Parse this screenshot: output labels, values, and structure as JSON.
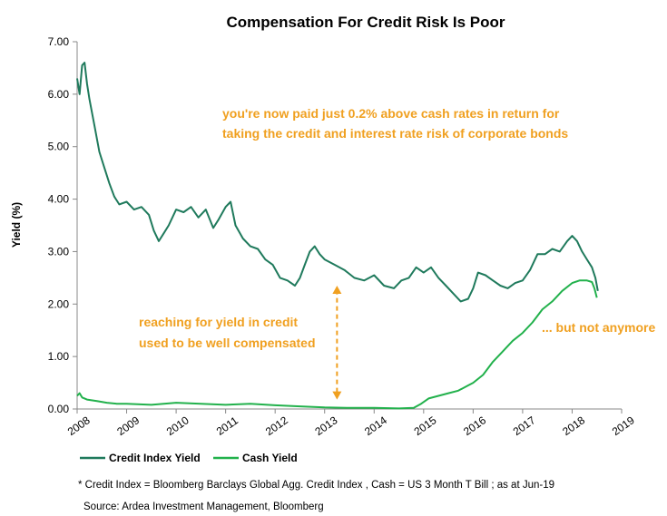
{
  "chart_data": {
    "type": "line",
    "title": "Compensation For Credit Risk Is Poor",
    "xlabel": "",
    "ylabel": "Yield (%)",
    "xlim": [
      2008,
      2019
    ],
    "ylim": [
      0,
      7
    ],
    "x_ticks": [
      "2008",
      "2009",
      "2010",
      "2011",
      "2012",
      "2013",
      "2014",
      "2015",
      "2016",
      "2017",
      "2018",
      "2019"
    ],
    "y_ticks": [
      "0.00",
      "1.00",
      "2.00",
      "3.00",
      "4.00",
      "5.00",
      "6.00",
      "7.00"
    ],
    "grid": false,
    "legend_position": "bottom-left",
    "series": [
      {
        "name": "Credit Index Yield",
        "color": "#1f7a5c",
        "x": [
          2008.0,
          2008.05,
          2008.1,
          2008.15,
          2008.2,
          2008.25,
          2008.35,
          2008.45,
          2008.55,
          2008.65,
          2008.75,
          2008.85,
          2009.0,
          2009.15,
          2009.3,
          2009.45,
          2009.55,
          2009.65,
          2009.75,
          2009.85,
          2010.0,
          2010.15,
          2010.3,
          2010.45,
          2010.6,
          2010.75,
          2010.85,
          2011.0,
          2011.1,
          2011.2,
          2011.35,
          2011.5,
          2011.65,
          2011.8,
          2011.95,
          2012.1,
          2012.25,
          2012.4,
          2012.5,
          2012.6,
          2012.7,
          2012.8,
          2012.9,
          2013.0,
          2013.2,
          2013.4,
          2013.6,
          2013.8,
          2014.0,
          2014.2,
          2014.4,
          2014.55,
          2014.7,
          2014.85,
          2015.0,
          2015.15,
          2015.3,
          2015.45,
          2015.6,
          2015.75,
          2015.9,
          2016.0,
          2016.1,
          2016.25,
          2016.4,
          2016.55,
          2016.7,
          2016.85,
          2017.0,
          2017.15,
          2017.3,
          2017.45,
          2017.6,
          2017.75,
          2017.9,
          2018.0,
          2018.1,
          2018.2,
          2018.3,
          2018.4,
          2018.47,
          2018.52
        ],
        "y": [
          6.3,
          6.0,
          6.55,
          6.6,
          6.2,
          5.9,
          5.4,
          4.9,
          4.6,
          4.3,
          4.05,
          3.9,
          3.95,
          3.8,
          3.85,
          3.7,
          3.4,
          3.2,
          3.35,
          3.5,
          3.8,
          3.75,
          3.85,
          3.65,
          3.8,
          3.45,
          3.6,
          3.85,
          3.95,
          3.5,
          3.25,
          3.1,
          3.05,
          2.85,
          2.75,
          2.5,
          2.45,
          2.35,
          2.5,
          2.75,
          3.0,
          3.1,
          2.95,
          2.85,
          2.75,
          2.65,
          2.5,
          2.45,
          2.55,
          2.35,
          2.3,
          2.45,
          2.5,
          2.7,
          2.6,
          2.7,
          2.5,
          2.35,
          2.2,
          2.05,
          2.1,
          2.3,
          2.6,
          2.55,
          2.45,
          2.35,
          2.3,
          2.4,
          2.45,
          2.65,
          2.95,
          2.95,
          3.05,
          3.0,
          3.2,
          3.3,
          3.2,
          3.0,
          2.85,
          2.7,
          2.5,
          2.25
        ]
      },
      {
        "name": "Cash Yield",
        "color": "#22b14c",
        "x": [
          2008.0,
          2008.05,
          2008.1,
          2008.2,
          2008.4,
          2008.6,
          2008.8,
          2009.0,
          2009.5,
          2010.0,
          2010.5,
          2011.0,
          2011.5,
          2012.0,
          2012.5,
          2013.0,
          2013.5,
          2014.0,
          2014.5,
          2014.8,
          2014.95,
          2015.1,
          2015.3,
          2015.5,
          2015.7,
          2015.9,
          2016.0,
          2016.2,
          2016.4,
          2016.6,
          2016.8,
          2017.0,
          2017.2,
          2017.4,
          2017.6,
          2017.8,
          2018.0,
          2018.15,
          2018.3,
          2018.4,
          2018.45,
          2018.5
        ],
        "y": [
          0.25,
          0.3,
          0.22,
          0.18,
          0.15,
          0.12,
          0.1,
          0.1,
          0.08,
          0.12,
          0.1,
          0.08,
          0.1,
          0.07,
          0.05,
          0.03,
          0.02,
          0.02,
          0.01,
          0.02,
          0.1,
          0.2,
          0.25,
          0.3,
          0.35,
          0.45,
          0.5,
          0.65,
          0.9,
          1.1,
          1.3,
          1.45,
          1.65,
          1.9,
          2.05,
          2.25,
          2.4,
          2.45,
          2.45,
          2.42,
          2.3,
          2.12
        ]
      }
    ],
    "annotations": [
      {
        "text": "you're now paid just 0.2% above cash rates in return for",
        "color": "#f0a020"
      },
      {
        "text": "taking the credit and  interest rate risk of corporate bonds",
        "color": "#f0a020"
      },
      {
        "text": "reaching for yield in credit",
        "color": "#f0a020"
      },
      {
        "text": "used to be well compensated",
        "color": "#f0a020"
      },
      {
        "text": "... but not anymore",
        "color": "#f0a020"
      }
    ],
    "arrow": {
      "x": 2013.25,
      "y_from": 0.18,
      "y_to": 2.35,
      "color": "#f0a020"
    }
  },
  "legend": {
    "items": [
      {
        "label": "Credit Index Yield",
        "color": "#1f7a5c"
      },
      {
        "label": "Cash Yield",
        "color": "#22b14c"
      }
    ]
  },
  "footnote": {
    "line1": "* Credit Index = Bloomberg Barclays Global Agg. Credit Index ,  Cash = US 3 Month T Bill ;  as at Jun-19",
    "line2": "Source: Ardea Investment Management, Bloomberg"
  }
}
